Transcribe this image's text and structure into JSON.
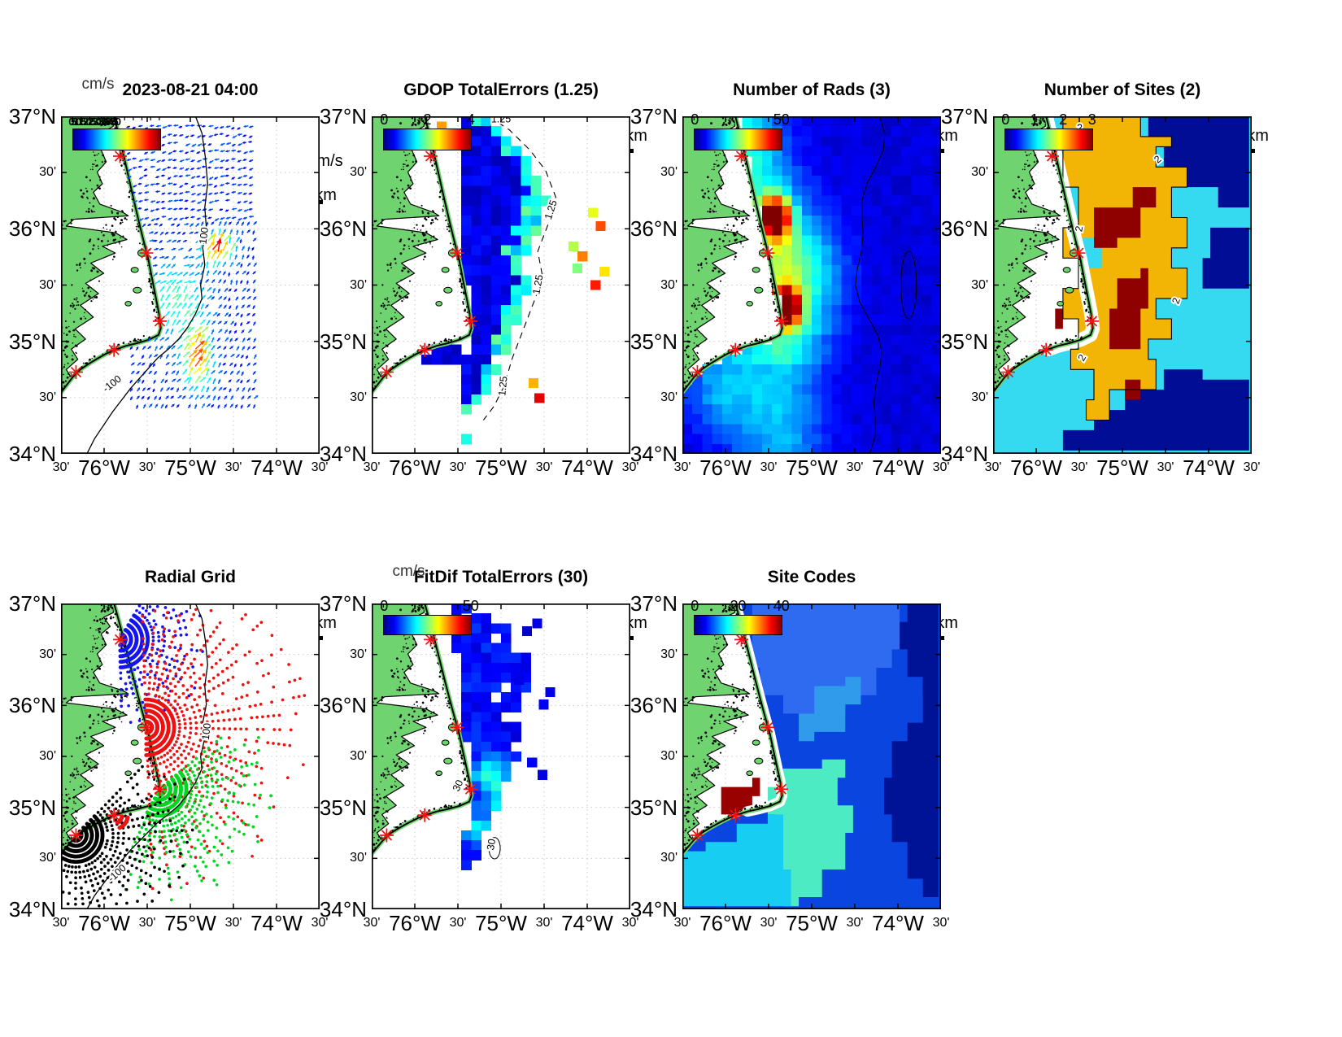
{
  "figure": {
    "background": "#ffffff"
  },
  "axes": {
    "x_tick_labels": [
      "30'",
      "76°W",
      "30'",
      "75°W",
      "30'",
      "74°W",
      "30'"
    ],
    "y_tick_labels": [
      "37°N",
      "30'",
      "36°N",
      "30'",
      "35°N",
      "30'",
      "34°N"
    ]
  },
  "panels": [
    {
      "id": "currents",
      "title": "2023-08-21 04:00",
      "units_label": "cm/s",
      "colorbar_ticks": [
        "0",
        "5",
        "10",
        "15",
        "20",
        "25",
        "30",
        "35",
        "40",
        "45",
        "50"
      ],
      "scale_label": "10 km",
      "reference_vector_label": "50 cm/s",
      "contour_labels": [
        "100",
        "-100"
      ]
    },
    {
      "id": "gdop",
      "title": "GDOP TotalErrors (1.25)",
      "colorbar_ticks": [
        "0",
        "2",
        "4"
      ],
      "scale_label": "10 km",
      "contour_labels": [
        "1.25",
        "1.25",
        "1.25",
        "1.25"
      ]
    },
    {
      "id": "numrads",
      "title": "Number of Rads (3)",
      "colorbar_ticks": [
        "0",
        "50"
      ],
      "scale_label": "10 km",
      "contour_labels": []
    },
    {
      "id": "numsites",
      "title": "Number of Sites (2)",
      "colorbar_ticks": [
        "0",
        "1",
        "2",
        "3"
      ],
      "scale_label": "10 km",
      "contour_labels": [
        "2",
        "2",
        "2",
        "2",
        "2"
      ]
    },
    {
      "id": "radialgrid",
      "title": "Radial Grid",
      "scale_label": "10 km",
      "contour_labels": [
        "100",
        "-100"
      ]
    },
    {
      "id": "fitdif",
      "title": "FitDif TotalErrors (30)",
      "units_label": "cm/s",
      "colorbar_ticks": [
        "0",
        "50"
      ],
      "scale_label": "10 km",
      "contour_labels": [
        "30",
        "30"
      ]
    },
    {
      "id": "sitecodes",
      "title": "Site Codes",
      "colorbar_ticks": [
        "0",
        "20",
        "40"
      ],
      "scale_label": "10 km",
      "contour_labels": []
    }
  ],
  "style": {
    "land_color": "#6fd36f",
    "ocean_color": "#ffffff",
    "site_marker_color": "#f01212",
    "colormap": "jet",
    "navy": "#000d94",
    "gold": "#f2b405",
    "cyan": "#35d9f0",
    "dark_red": "#8f0000"
  },
  "chart_data": {
    "type": "map",
    "description": "HF radar surface-current totals diagnostic maps, North Carolina Outer Banks coast; 7 map panels sharing identical lon/lat axes",
    "timestamp": "2023-08-21 04:00",
    "map_extent": {
      "lon_ticks": [
        "30'",
        "76°W",
        "30'",
        "75°W",
        "30'",
        "74°W",
        "30'"
      ],
      "lat_ticks": [
        "37°N",
        "30'",
        "36°N",
        "30'",
        "35°N",
        "30'",
        "34°N"
      ],
      "lon_range_deg_west": [
        76.5,
        73.5
      ],
      "lat_range_deg_north": [
        34,
        37
      ]
    },
    "radar_sites": {
      "count": 5,
      "marker": "red asterisk",
      "positions_frac": [
        [
          0.228,
          0.118
        ],
        [
          0.33,
          0.405
        ],
        [
          0.382,
          0.607
        ],
        [
          0.205,
          0.692
        ],
        [
          0.058,
          0.758
        ]
      ]
    },
    "panels": [
      {
        "title": "2023-08-21 04:00",
        "quantity": "surface current vectors colored by speed",
        "units": "cm/s",
        "color_scale": [
          0,
          50
        ],
        "reference_vector_cm_s": 50,
        "scale_bar_km": 10,
        "depth_contour_m": -100
      },
      {
        "title": "GDOP TotalErrors (1.25)",
        "quantity": "GDOP total error",
        "threshold": 1.25,
        "color_scale": [
          0,
          4
        ],
        "colorbar_ticks": [
          0,
          2,
          4
        ],
        "contour_value": 1.25,
        "scale_bar_km": 10
      },
      {
        "title": "Number of Rads (3)",
        "quantity": "number of radial solutions",
        "threshold": 3,
        "color_scale": [
          0,
          50
        ],
        "hotspots_frac": [
          [
            0.358,
            0.3
          ],
          [
            0.398,
            0.565
          ]
        ],
        "scale_bar_km": 10
      },
      {
        "title": "Number of Sites (2)",
        "quantity": "number of contributing radar sites",
        "threshold": 2,
        "color_scale": [
          0,
          3
        ],
        "colorbar_ticks": [
          0,
          1,
          2,
          3
        ],
        "value_colors": {
          "0": "#000d94",
          "1": "#35d9f0",
          "2": "#f2b405",
          "3": "#8f0000"
        },
        "contour_value": 2,
        "scale_bar_km": 10
      },
      {
        "title": "Radial Grid",
        "quantity": "radial measurement grid points per site",
        "site_fan_colors": [
          "#1414f0",
          "#ee1111",
          "#00d622",
          "#000000"
        ],
        "depth_contour_m": -100,
        "scale_bar_km": 10
      },
      {
        "title": "FitDif TotalErrors (30)",
        "quantity": "fit-difference total error",
        "units": "cm/s",
        "threshold": 30,
        "color_scale": [
          0,
          50
        ],
        "colorbar_ticks": [
          0,
          50
        ],
        "scale_bar_km": 10
      },
      {
        "title": "Site Codes",
        "quantity": "dominant site-code regions",
        "color_scale": [
          0,
          40
        ],
        "colorbar_ticks": [
          0,
          20,
          40
        ],
        "region_colors": [
          "#0b45e0",
          "#2e6bf0",
          "#001295",
          "#2f9bea",
          "#4debc4",
          "#18cdf2",
          "#990000"
        ],
        "scale_bar_km": 10
      }
    ]
  }
}
